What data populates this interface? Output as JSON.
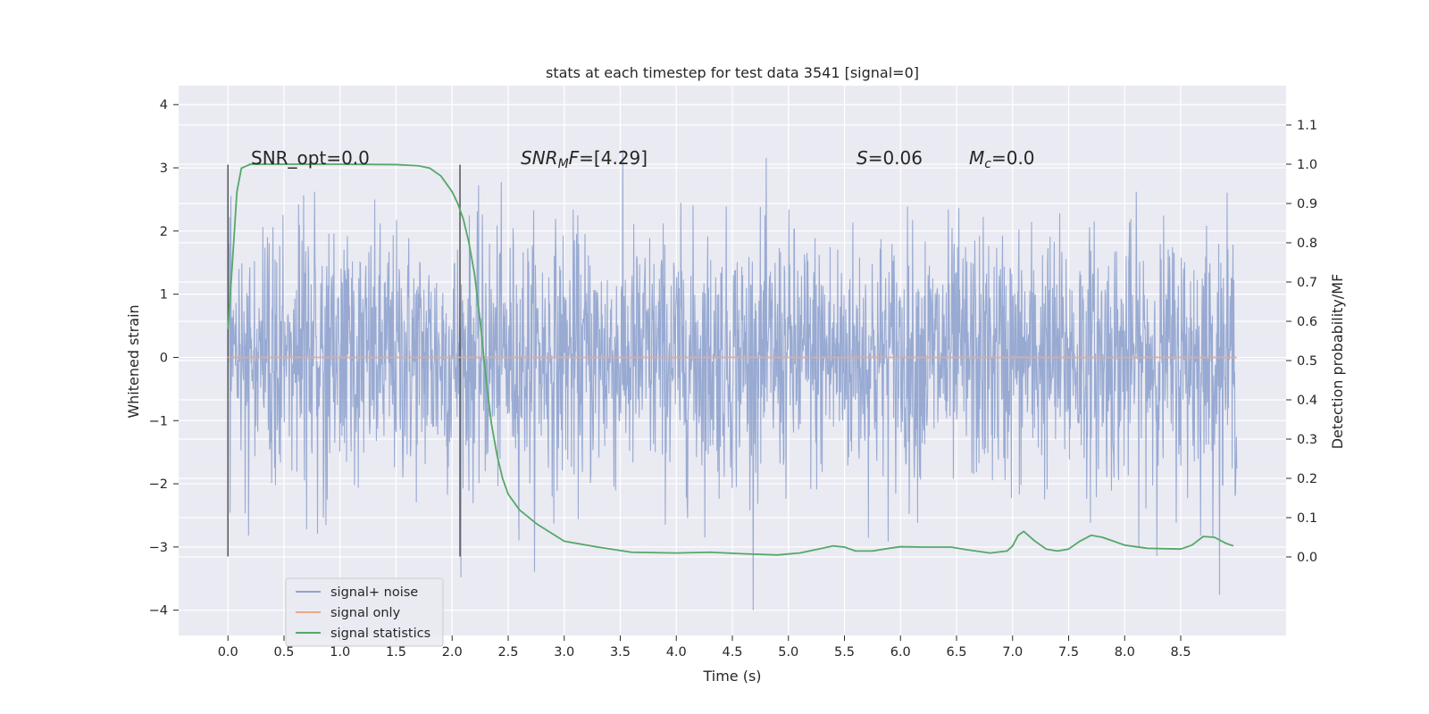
{
  "chart_data": {
    "type": "line",
    "title": "stats at each timestep for test data 3541 [signal=0]",
    "xlabel": "Time (s)",
    "ylabel_left": "Whitened strain",
    "ylabel_right": "Detection probability/MF",
    "xlim": [
      -0.44,
      9.44
    ],
    "ylim_left": [
      -4.4,
      4.3
    ],
    "ylim_right": [
      -0.2,
      1.2
    ],
    "x_ticks": [
      "0.0",
      "0.5",
      "1.0",
      "1.5",
      "2.0",
      "2.5",
      "3.0",
      "3.5",
      "4.0",
      "4.5",
      "5.0",
      "5.5",
      "6.0",
      "6.5",
      "7.0",
      "7.5",
      "8.0",
      "8.5"
    ],
    "y_left_ticks": [
      "−4",
      "−3",
      "−2",
      "−1",
      "0",
      "1",
      "2",
      "3",
      "4"
    ],
    "y_right_ticks": [
      "0.0",
      "0.1",
      "0.2",
      "0.3",
      "0.4",
      "0.5",
      "0.6",
      "0.7",
      "0.8",
      "0.9",
      "1.0",
      "1.1"
    ],
    "grid": true,
    "legend_position": "lower-left",
    "annotations": {
      "snr_opt": "SNR_opt=0.0",
      "snr_mf_main": "SNR",
      "snr_mf_sub": "M",
      "snr_mf_rest": "F=[4.29]",
      "s_main": "S",
      "s_rest": "=0.06",
      "mc_main": "M",
      "mc_sub": "c",
      "mc_rest": "=0.0"
    },
    "vertical_markers": [
      0.0,
      2.07
    ],
    "series": [
      {
        "name": "signal+ noise",
        "color": "#8fa3ce",
        "x_range": [
          0.0,
          9.0
        ],
        "envelope": {
          "typical_low": -2.0,
          "typical_high": 2.0,
          "min": -4.0,
          "max": 3.9
        }
      },
      {
        "name": "signal only",
        "color": "#dd8452",
        "x": [
          0.0,
          9.0
        ],
        "y": [
          0.0,
          0.0
        ]
      },
      {
        "name": "signal statistics",
        "color": "#55a868",
        "x": [
          0.0,
          0.04,
          0.08,
          0.12,
          0.2,
          0.3,
          0.5,
          1.0,
          1.5,
          1.7,
          1.8,
          1.9,
          2.0,
          2.05,
          2.1,
          2.15,
          2.2,
          2.25,
          2.3,
          2.35,
          2.4,
          2.45,
          2.5,
          2.6,
          2.75,
          3.0,
          3.3,
          3.6,
          4.0,
          4.3,
          4.6,
          4.9,
          5.1,
          5.3,
          5.4,
          5.5,
          5.6,
          5.75,
          5.9,
          6.0,
          6.2,
          6.45,
          6.6,
          6.8,
          6.95,
          7.0,
          7.05,
          7.1,
          7.2,
          7.3,
          7.4,
          7.5,
          7.6,
          7.7,
          7.8,
          7.9,
          8.0,
          8.2,
          8.5,
          8.6,
          8.7,
          8.8,
          8.9,
          8.97
        ],
        "y": [
          0.58,
          0.75,
          0.93,
          0.99,
          1.0,
          1.0,
          1.0,
          1.0,
          0.999,
          0.996,
          0.99,
          0.97,
          0.93,
          0.9,
          0.86,
          0.8,
          0.72,
          0.6,
          0.46,
          0.34,
          0.26,
          0.2,
          0.16,
          0.12,
          0.085,
          0.04,
          0.025,
          0.012,
          0.01,
          0.012,
          0.008,
          0.005,
          0.01,
          0.022,
          0.028,
          0.025,
          0.015,
          0.015,
          0.022,
          0.026,
          0.025,
          0.025,
          0.018,
          0.01,
          0.015,
          0.028,
          0.055,
          0.065,
          0.04,
          0.02,
          0.015,
          0.02,
          0.04,
          0.055,
          0.05,
          0.04,
          0.03,
          0.022,
          0.02,
          0.03,
          0.052,
          0.05,
          0.035,
          0.028
        ]
      }
    ]
  }
}
